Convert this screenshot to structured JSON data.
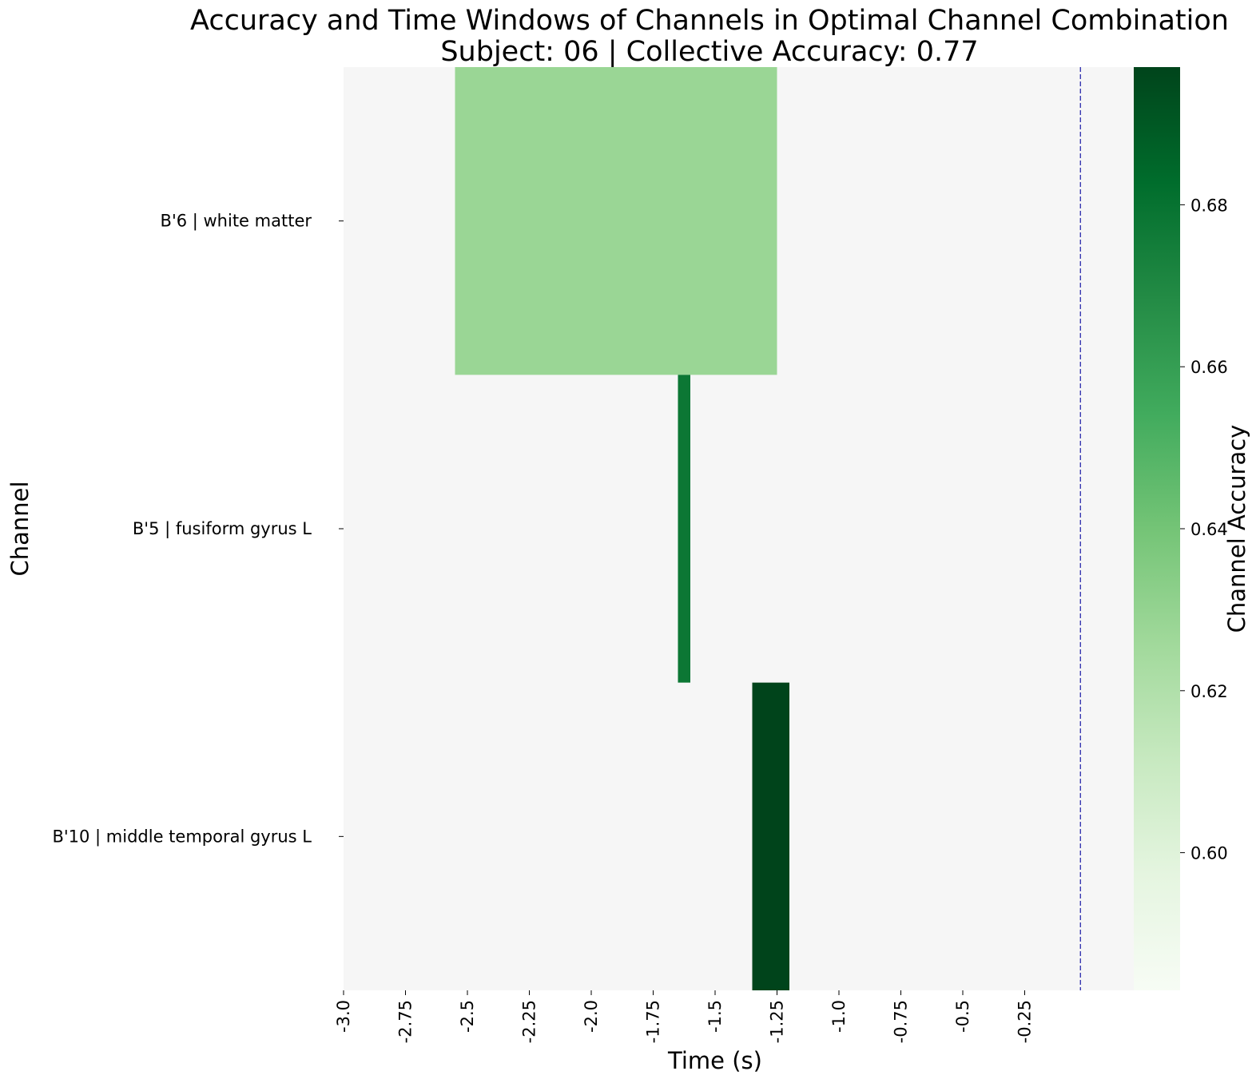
{
  "chart_data": {
    "type": "heatmap",
    "title": "Accuracy and Time Windows of Channels in Optimal Channel Combination",
    "subtitle": "Subject: 06 | Collective Accuracy: 0.77",
    "xlabel": "Time (s)",
    "ylabel": "Channel",
    "colorbar_label": "Channel Accuracy",
    "xlim": [
      -3.0,
      0.0
    ],
    "x_ticks": [
      -3.0,
      -2.75,
      -2.5,
      -2.25,
      -2.0,
      -1.75,
      -1.5,
      -1.25,
      -1.0,
      -0.75,
      -0.5,
      -0.25
    ],
    "x_tick_labels": [
      "-3.0",
      "-2.75",
      "-2.5",
      "-2.25",
      "-2.0",
      "-1.75",
      "-1.5",
      "-1.25",
      "-1.0",
      "-0.75",
      "-0.5",
      "-0.25"
    ],
    "channels": [
      "B'6 | white matter",
      "B'5 | fusiform gyrus L",
      "B'10 | middle temporal gyrus L"
    ],
    "windows": [
      {
        "channel": "B'6 | white matter",
        "start": -2.55,
        "end": -1.25,
        "accuracy": 0.628
      },
      {
        "channel": "B'5 | fusiform gyrus L",
        "start": -1.65,
        "end": -1.6,
        "accuracy": 0.678
      },
      {
        "channel": "B'10 | middle temporal gyrus L",
        "start": -1.35,
        "end": -1.2,
        "accuracy": 0.697
      }
    ],
    "event_line_x": -0.025,
    "colorbar": {
      "colormap": "Greens",
      "range": [
        0.583,
        0.697
      ],
      "ticks": [
        0.6,
        0.62,
        0.64,
        0.66,
        0.68
      ],
      "tick_labels": [
        "0.60",
        "0.62",
        "0.64",
        "0.66",
        "0.68"
      ]
    },
    "background_color": "#f6f6f6",
    "event_line_color": "#1a1aa6",
    "grid": false
  }
}
